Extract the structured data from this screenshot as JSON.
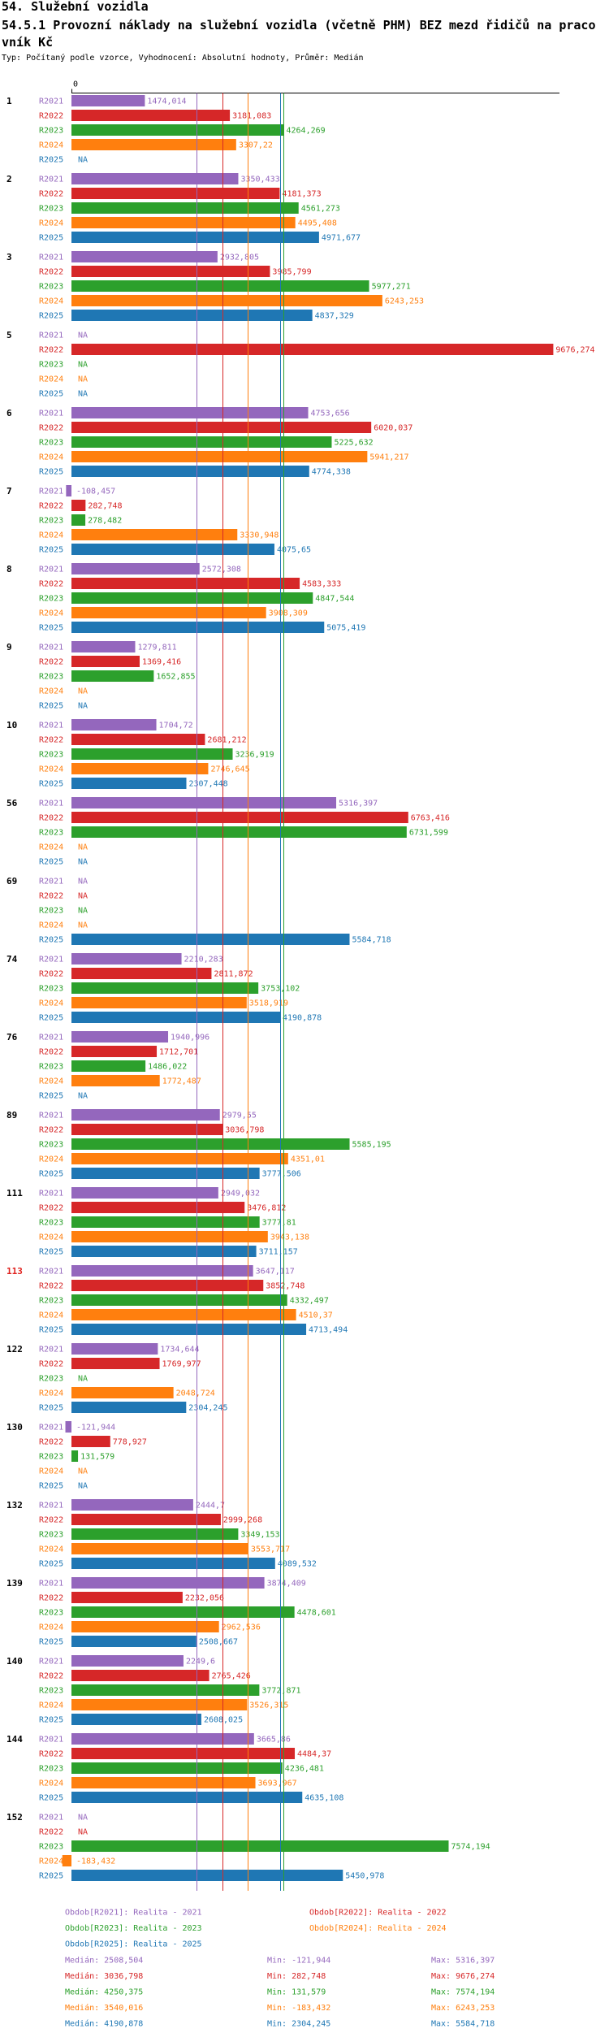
{
  "page": {
    "section_title": "54. Služební vozidla",
    "subtitle": "Typ: Počítaný podle vzorce, Vyhodnocení: Absolutní hodnoty, Průměr: Medián"
  },
  "chart_data": {
    "type": "bar",
    "orientation": "horizontal",
    "title_lines": [
      "54.5.1 Provozní náklady na služební vozidla (včetně PHM) BEZ mezd řidičů na praco",
      "vník Kč"
    ],
    "x_axis": {
      "zero_label": "0",
      "xlim": [
        0,
        9800
      ]
    },
    "na_label": "NA",
    "highlight_color": "#e0211d",
    "stat_labels": {
      "median": "Medián",
      "min": "Min",
      "max": "Max"
    },
    "series": [
      {
        "key": "R2021",
        "legend": "Obdob[R2021]: Realita - 2021",
        "color": "#9467bd",
        "median": 2508.504,
        "min": -121.944,
        "max": 5316.397
      },
      {
        "key": "R2022",
        "legend": "Obdob[R2022]: Realita - 2022",
        "color": "#d62728",
        "median": 3036.798,
        "min": 282.748,
        "max": 9676.274
      },
      {
        "key": "R2023",
        "legend": "Obdob[R2023]: Realita - 2023",
        "color": "#2ca02c",
        "median": 4250.375,
        "min": 131.579,
        "max": 7574.194
      },
      {
        "key": "R2024",
        "legend": "Obdob[R2024]: Realita - 2024",
        "color": "#ff7f0e",
        "median": 3540.016,
        "min": -183.432,
        "max": 6243.253
      },
      {
        "key": "R2025",
        "legend": "Obdob[R2025]: Realita - 2025",
        "color": "#1f77b4",
        "median": 4190.878,
        "min": 2304.245,
        "max": 5584.718
      }
    ],
    "groups": [
      {
        "label": "1",
        "values": [
          1474.014,
          3181.083,
          4264.269,
          3307.22,
          null
        ]
      },
      {
        "label": "2",
        "values": [
          3350.433,
          4181.373,
          4561.273,
          4495.408,
          4971.677
        ]
      },
      {
        "label": "3",
        "values": [
          2932.805,
          3985.799,
          5977.271,
          6243.253,
          4837.329
        ]
      },
      {
        "label": "5",
        "values": [
          null,
          9676.274,
          null,
          null,
          null
        ]
      },
      {
        "label": "6",
        "values": [
          4753.656,
          6020.037,
          5225.632,
          5941.217,
          4774.338
        ]
      },
      {
        "label": "7",
        "values": [
          -108.457,
          282.748,
          278.482,
          3330.948,
          4075.65
        ]
      },
      {
        "label": "8",
        "values": [
          2572.308,
          4583.333,
          4847.544,
          3908.309,
          5075.419
        ]
      },
      {
        "label": "9",
        "values": [
          1279.811,
          1369.416,
          1652.855,
          null,
          null
        ]
      },
      {
        "label": "10",
        "values": [
          1704.72,
          2681.212,
          3236.919,
          2746.645,
          2307.448
        ]
      },
      {
        "label": "56",
        "values": [
          5316.397,
          6763.416,
          6731.599,
          null,
          null
        ]
      },
      {
        "label": "69",
        "values": [
          null,
          null,
          null,
          null,
          5584.718
        ]
      },
      {
        "label": "74",
        "values": [
          2210.283,
          2811.872,
          3753.102,
          3518.919,
          4190.878
        ]
      },
      {
        "label": "76",
        "values": [
          1940.996,
          1712.701,
          1486.022,
          1772.487,
          null
        ]
      },
      {
        "label": "89",
        "values": [
          2979.55,
          3036.798,
          5585.195,
          4351.01,
          3777.506
        ]
      },
      {
        "label": "111",
        "values": [
          2949.032,
          3476.812,
          3777.81,
          3943.138,
          3711.157
        ]
      },
      {
        "label": "113",
        "highlight": true,
        "values": [
          3647.117,
          3852.748,
          4332.497,
          4510.37,
          4713.494
        ]
      },
      {
        "label": "122",
        "values": [
          1734.644,
          1769.977,
          null,
          2048.724,
          2304.245
        ]
      },
      {
        "label": "130",
        "values": [
          -121.944,
          778.927,
          131.579,
          null,
          null
        ]
      },
      {
        "label": "132",
        "values": [
          2444.7,
          2999.268,
          3349.153,
          3553.717,
          4089.532
        ]
      },
      {
        "label": "139",
        "values": [
          3874.409,
          2232.056,
          4478.601,
          2962.536,
          2508.667
        ]
      },
      {
        "label": "140",
        "values": [
          2249.6,
          2765.426,
          3772.871,
          3526.315,
          2608.025
        ]
      },
      {
        "label": "144",
        "values": [
          3665.86,
          4484.37,
          4236.481,
          3693.967,
          4635.108
        ]
      },
      {
        "label": "152",
        "values": [
          null,
          null,
          7574.194,
          -183.432,
          5450.978
        ]
      }
    ]
  }
}
